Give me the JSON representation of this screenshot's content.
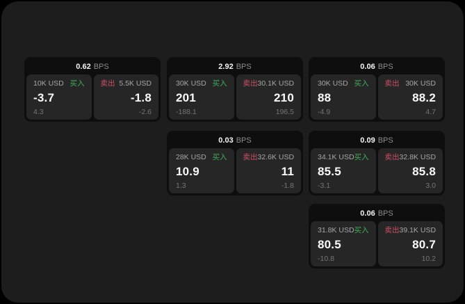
{
  "labels": {
    "bps_unit": "BPS",
    "buy": "买入",
    "sell": "卖出"
  },
  "colors": {
    "buy": "#3fae5c",
    "sell": "#cf4f63",
    "panel": "#1d1d1d",
    "card": "#0e0e0e",
    "tile": "#262626"
  },
  "cards": [
    {
      "bps": "0.62",
      "buy": {
        "size": "10K USD",
        "price": "-3.7",
        "delta": "4.3"
      },
      "sell": {
        "size": "5.5K USD",
        "price": "-1.8",
        "delta": "-2.6"
      }
    },
    {
      "bps": "2.92",
      "buy": {
        "size": "30K USD",
        "price": "201",
        "delta": "-188.1"
      },
      "sell": {
        "size": "30.1K USD",
        "price": "210",
        "delta": "196.5"
      }
    },
    {
      "bps": "0.06",
      "buy": {
        "size": "30K USD",
        "price": "88",
        "delta": "-4.9"
      },
      "sell": {
        "size": "30K USD",
        "price": "88.2",
        "delta": "4.7"
      }
    },
    {
      "bps": "0.03",
      "buy": {
        "size": "28K USD",
        "price": "10.9",
        "delta": "1.3"
      },
      "sell": {
        "size": "32.6K USD",
        "price": "11",
        "delta": "-1.8"
      }
    },
    {
      "bps": "0.09",
      "buy": {
        "size": "34.1K USD",
        "price": "85.5",
        "delta": "-3.1"
      },
      "sell": {
        "size": "32.8K USD",
        "price": "85.8",
        "delta": "3.0"
      }
    },
    {
      "bps": "0.06",
      "buy": {
        "size": "31.8K USD",
        "price": "80.5",
        "delta": "-10.8"
      },
      "sell": {
        "size": "39.1K USD",
        "price": "80.7",
        "delta": "10.2"
      }
    }
  ]
}
